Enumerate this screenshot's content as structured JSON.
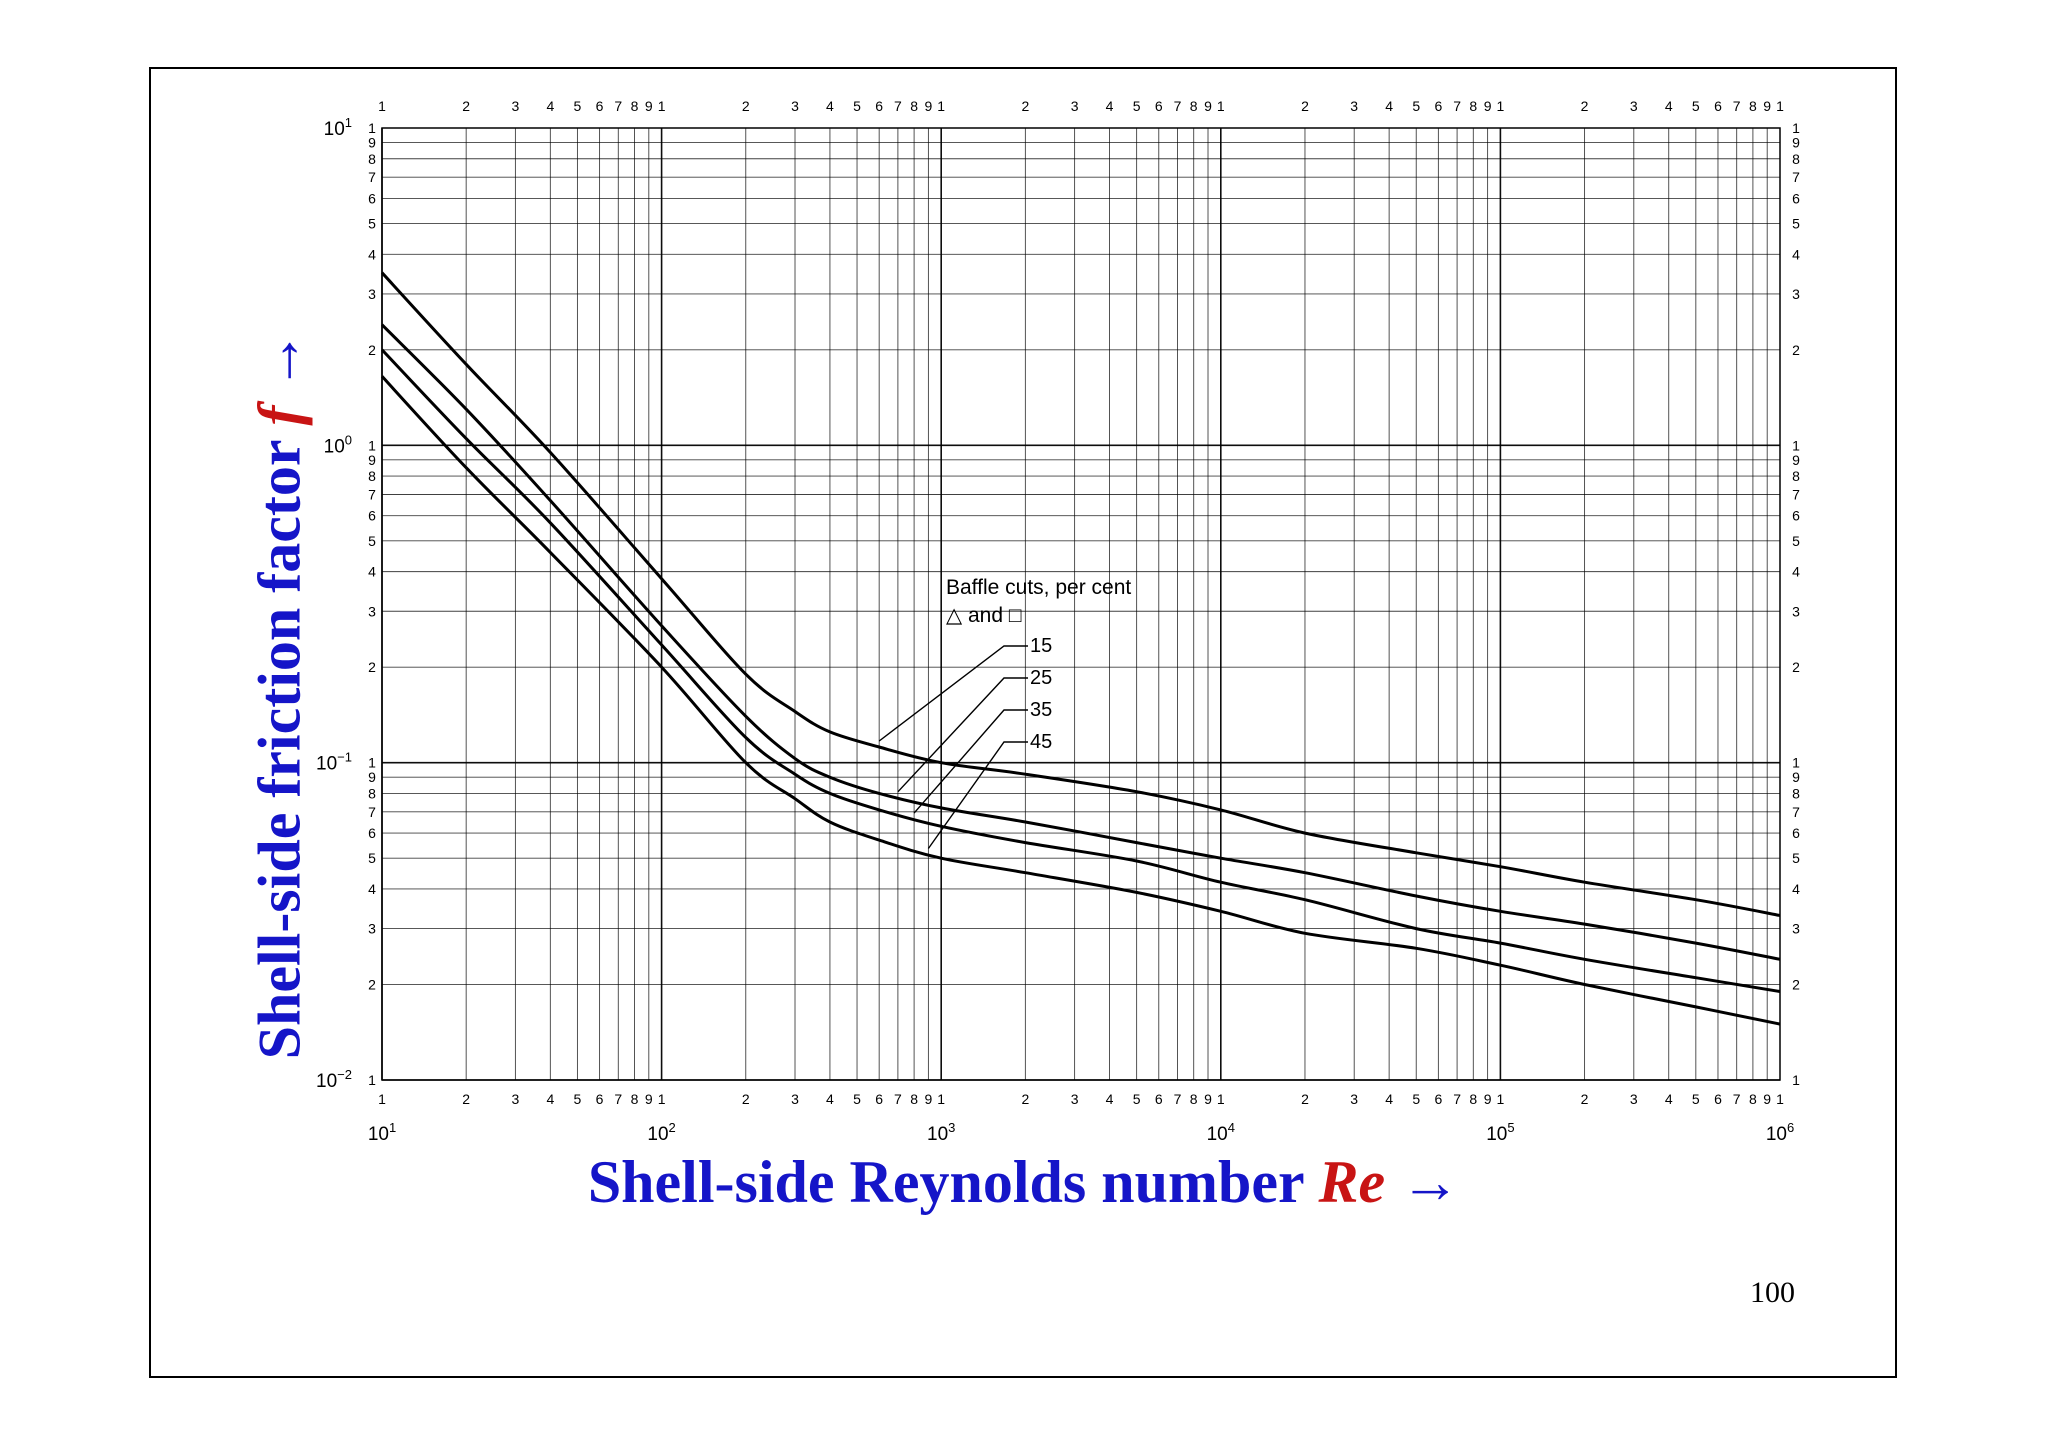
{
  "page_number": "100",
  "colors": {
    "label_blue": "#1515c8",
    "label_red": "#c81414",
    "line": "#000000"
  },
  "chart_data": {
    "type": "line",
    "xscale": "log",
    "yscale": "log",
    "xlim": [
      10,
      1000000
    ],
    "ylim": [
      0.01,
      10
    ],
    "grid": true,
    "xlabel": {
      "text": "Shell-side Reynolds number",
      "variable": "Re",
      "arrow": "→"
    },
    "ylabel": {
      "text": "Shell-side friction factor",
      "variable": "f",
      "arrow": "→"
    },
    "x_decade_labels": [
      {
        "base": "10",
        "exp": "1"
      },
      {
        "base": "10",
        "exp": "2"
      },
      {
        "base": "10",
        "exp": "3"
      },
      {
        "base": "10",
        "exp": "4"
      },
      {
        "base": "10",
        "exp": "5"
      },
      {
        "base": "10",
        "exp": "6"
      }
    ],
    "y_decade_labels": [
      {
        "base": "10",
        "exp": "1",
        "value": 10
      },
      {
        "base": "10",
        "exp": "0",
        "value": 1
      },
      {
        "base": "10",
        "exp": "−1",
        "value": 0.1
      },
      {
        "base": "10",
        "exp": "−2",
        "value": 0.01
      }
    ],
    "minor_tick_labels": [
      "1",
      "2",
      "3",
      "4",
      "5",
      "6",
      "7",
      "8",
      "9"
    ],
    "legend": {
      "title": "Baffle cuts, per cent",
      "subtitle": "△ and □",
      "placement": "center"
    },
    "series": [
      {
        "name": "15",
        "x": [
          10,
          20,
          40,
          100,
          200,
          300,
          400,
          600,
          1000,
          2000,
          5000,
          10000,
          20000,
          50000,
          100000,
          200000,
          500000,
          1000000
        ],
        "y": [
          3.5,
          1.8,
          0.95,
          0.38,
          0.19,
          0.145,
          0.125,
          0.112,
          0.1,
          0.092,
          0.081,
          0.071,
          0.06,
          0.052,
          0.047,
          0.042,
          0.037,
          0.033
        ]
      },
      {
        "name": "25",
        "x": [
          10,
          20,
          40,
          100,
          200,
          300,
          400,
          600,
          1000,
          2000,
          5000,
          10000,
          20000,
          50000,
          100000,
          200000,
          500000,
          1000000
        ],
        "y": [
          2.4,
          1.3,
          0.67,
          0.27,
          0.14,
          0.103,
          0.09,
          0.08,
          0.072,
          0.065,
          0.056,
          0.05,
          0.045,
          0.038,
          0.034,
          0.031,
          0.027,
          0.024
        ]
      },
      {
        "name": "35",
        "x": [
          10,
          20,
          40,
          100,
          200,
          300,
          400,
          600,
          1000,
          2000,
          5000,
          10000,
          20000,
          50000,
          100000,
          200000,
          500000,
          1000000
        ],
        "y": [
          2.0,
          1.05,
          0.57,
          0.235,
          0.12,
          0.092,
          0.08,
          0.071,
          0.063,
          0.056,
          0.049,
          0.042,
          0.037,
          0.03,
          0.027,
          0.024,
          0.021,
          0.019
        ]
      },
      {
        "name": "45",
        "x": [
          10,
          20,
          40,
          100,
          200,
          300,
          400,
          600,
          1000,
          2000,
          5000,
          10000,
          20000,
          50000,
          100000,
          200000,
          500000,
          1000000
        ],
        "y": [
          1.65,
          0.85,
          0.46,
          0.2,
          0.1,
          0.077,
          0.065,
          0.057,
          0.05,
          0.045,
          0.039,
          0.034,
          0.029,
          0.026,
          0.023,
          0.02,
          0.017,
          0.015
        ]
      }
    ]
  }
}
